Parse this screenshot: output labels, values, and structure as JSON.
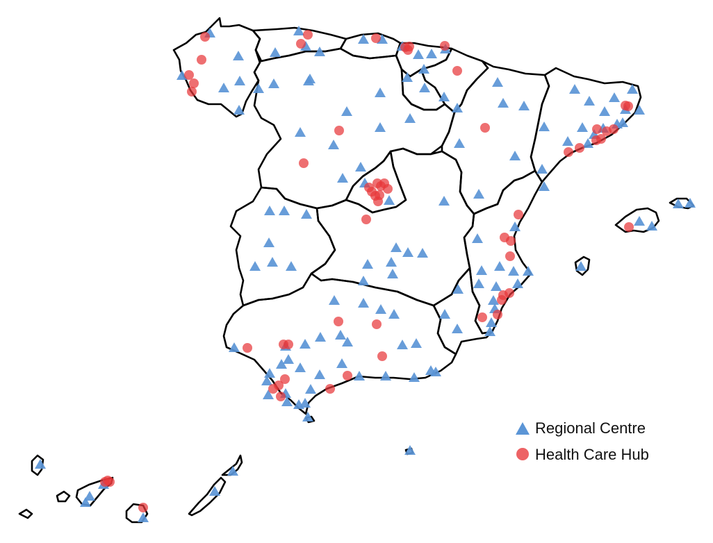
{
  "legend": {
    "regional_label": "Regional Centre",
    "hub_label": "Health Care Hub"
  },
  "colors": {
    "regional": "#5b95d6",
    "hub": "#e8373a",
    "border": "#000000"
  },
  "markers": {
    "regional": [
      [
        302,
        47
      ],
      [
        430,
        44
      ],
      [
        440,
        66
      ],
      [
        396,
        75
      ],
      [
        460,
        74
      ],
      [
        523,
        56
      ],
      [
        550,
        56
      ],
      [
        579,
        66
      ],
      [
        602,
        78
      ],
      [
        610,
        99
      ],
      [
        621,
        77
      ],
      [
        641,
        70
      ],
      [
        343,
        80
      ],
      [
        345,
        116
      ],
      [
        322,
        126
      ],
      [
        372,
        127
      ],
      [
        344,
        158
      ],
      [
        262,
        108
      ],
      [
        394,
        120
      ],
      [
        446,
        113
      ],
      [
        444,
        116
      ],
      [
        547,
        133
      ],
      [
        499,
        160
      ],
      [
        547,
        183
      ],
      [
        590,
        170
      ],
      [
        586,
        111
      ],
      [
        611,
        126
      ],
      [
        639,
        139
      ],
      [
        658,
        155
      ],
      [
        716,
        118
      ],
      [
        724,
        148
      ],
      [
        754,
        152
      ],
      [
        827,
        128
      ],
      [
        910,
        128
      ],
      [
        848,
        145
      ],
      [
        884,
        140
      ],
      [
        870,
        160
      ],
      [
        900,
        157
      ],
      [
        920,
        158
      ],
      [
        888,
        178
      ],
      [
        896,
        176
      ],
      [
        868,
        184
      ],
      [
        855,
        193
      ],
      [
        838,
        183
      ],
      [
        817,
        203
      ],
      [
        846,
        206
      ],
      [
        783,
        182
      ],
      [
        432,
        190
      ],
      [
        480,
        208
      ],
      [
        661,
        206
      ],
      [
        741,
        224
      ],
      [
        519,
        240
      ],
      [
        493,
        256
      ],
      [
        525,
        263
      ],
      [
        560,
        288
      ],
      [
        639,
        289
      ],
      [
        689,
        279
      ],
      [
        780,
        243
      ],
      [
        783,
        268
      ],
      [
        388,
        303
      ],
      [
        409,
        303
      ],
      [
        441,
        308
      ],
      [
        687,
        343
      ],
      [
        741,
        326
      ],
      [
        387,
        349
      ],
      [
        570,
        356
      ],
      [
        587,
        363
      ],
      [
        608,
        364
      ],
      [
        367,
        383
      ],
      [
        392,
        377
      ],
      [
        419,
        383
      ],
      [
        529,
        380
      ],
      [
        563,
        377
      ],
      [
        565,
        394
      ],
      [
        523,
        404
      ],
      [
        693,
        389
      ],
      [
        719,
        383
      ],
      [
        739,
        390
      ],
      [
        760,
        390
      ],
      [
        714,
        412
      ],
      [
        745,
        408
      ],
      [
        659,
        416
      ],
      [
        689,
        408
      ],
      [
        481,
        432
      ],
      [
        523,
        436
      ],
      [
        548,
        445
      ],
      [
        567,
        452
      ],
      [
        710,
        432
      ],
      [
        712,
        444
      ],
      [
        707,
        464
      ],
      [
        640,
        452
      ],
      [
        658,
        473
      ],
      [
        705,
        477
      ],
      [
        461,
        485
      ],
      [
        439,
        495
      ],
      [
        490,
        482
      ],
      [
        500,
        492
      ],
      [
        411,
        498
      ],
      [
        415,
        517
      ],
      [
        337,
        500
      ],
      [
        579,
        496
      ],
      [
        599,
        494
      ],
      [
        405,
        524
      ],
      [
        432,
        529
      ],
      [
        460,
        539
      ],
      [
        492,
        523
      ],
      [
        388,
        537
      ],
      [
        384,
        548
      ],
      [
        386,
        568
      ],
      [
        411,
        566
      ],
      [
        413,
        578
      ],
      [
        430,
        582
      ],
      [
        439,
        580
      ],
      [
        443,
        600
      ],
      [
        447,
        560
      ],
      [
        517,
        541
      ],
      [
        555,
        541
      ],
      [
        596,
        543
      ],
      [
        620,
        533
      ],
      [
        627,
        535
      ],
      [
        590,
        648
      ],
      [
        58,
        668
      ],
      [
        129,
        714
      ],
      [
        149,
        697
      ],
      [
        123,
        723
      ],
      [
        309,
        707
      ],
      [
        335,
        678
      ],
      [
        920,
        318
      ],
      [
        938,
        325
      ],
      [
        976,
        293
      ],
      [
        993,
        292
      ],
      [
        836,
        383
      ],
      [
        206,
        745
      ]
    ],
    "hub": [
      [
        295,
        53
      ],
      [
        433,
        63
      ],
      [
        443,
        50
      ],
      [
        541,
        55
      ],
      [
        589,
        67
      ],
      [
        587,
        72
      ],
      [
        583,
        68
      ],
      [
        640,
        66
      ],
      [
        658,
        102
      ],
      [
        290,
        86
      ],
      [
        272,
        108
      ],
      [
        279,
        120
      ],
      [
        276,
        132
      ],
      [
        488,
        188
      ],
      [
        437,
        235
      ],
      [
        698,
        184
      ],
      [
        818,
        219
      ],
      [
        834,
        213
      ],
      [
        859,
        186
      ],
      [
        873,
        189
      ],
      [
        883,
        186
      ],
      [
        865,
        200
      ],
      [
        858,
        202
      ],
      [
        900,
        152
      ],
      [
        904,
        153
      ],
      [
        531,
        270
      ],
      [
        535,
        276
      ],
      [
        540,
        282
      ],
      [
        544,
        290
      ],
      [
        546,
        281
      ],
      [
        553,
        264
      ],
      [
        558,
        272
      ],
      [
        548,
        268
      ],
      [
        543,
        264
      ],
      [
        527,
        316
      ],
      [
        746,
        309
      ],
      [
        726,
        342
      ],
      [
        735,
        347
      ],
      [
        734,
        369
      ],
      [
        724,
        425
      ],
      [
        733,
        422
      ],
      [
        722,
        432
      ],
      [
        716,
        453
      ],
      [
        694,
        457
      ],
      [
        905,
        327
      ],
      [
        487,
        463
      ],
      [
        542,
        467
      ],
      [
        550,
        513
      ],
      [
        356,
        501
      ],
      [
        408,
        496
      ],
      [
        415,
        496
      ],
      [
        500,
        541
      ],
      [
        475,
        560
      ],
      [
        410,
        546
      ],
      [
        393,
        560
      ],
      [
        401,
        555
      ],
      [
        404,
        571
      ],
      [
        151,
        694
      ],
      [
        158,
        694
      ],
      [
        155,
        692
      ],
      [
        206,
        731
      ]
    ]
  }
}
